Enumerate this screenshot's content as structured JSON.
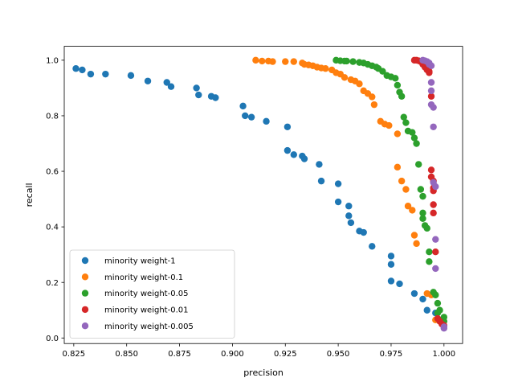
{
  "chart_data": {
    "type": "scatter",
    "title": "",
    "xlabel": "precision",
    "ylabel": "recall",
    "xlim": [
      0.8205,
      1.0088
    ],
    "ylim": [
      -0.02,
      1.05
    ],
    "x_ticks": [
      0.825,
      0.85,
      0.875,
      0.9,
      0.925,
      0.95,
      0.975,
      1.0
    ],
    "x_tick_labels": [
      "0.825",
      "0.850",
      "0.875",
      "0.900",
      "0.925",
      "0.950",
      "0.975",
      "1.000"
    ],
    "y_ticks": [
      0.0,
      0.2,
      0.4,
      0.6,
      0.8,
      1.0
    ],
    "y_tick_labels": [
      "0.0",
      "0.2",
      "0.4",
      "0.6",
      "0.8",
      "1.0"
    ],
    "grid": false,
    "legend_position": "lower-left",
    "series": [
      {
        "name": "minority weight-1",
        "color": "#1f77b4",
        "points": [
          [
            0.826,
            0.97
          ],
          [
            0.829,
            0.965
          ],
          [
            0.833,
            0.95
          ],
          [
            0.84,
            0.95
          ],
          [
            0.852,
            0.945
          ],
          [
            0.86,
            0.925
          ],
          [
            0.869,
            0.92
          ],
          [
            0.871,
            0.905
          ],
          [
            0.883,
            0.9
          ],
          [
            0.884,
            0.875
          ],
          [
            0.89,
            0.87
          ],
          [
            0.892,
            0.865
          ],
          [
            0.905,
            0.835
          ],
          [
            0.906,
            0.8
          ],
          [
            0.909,
            0.795
          ],
          [
            0.916,
            0.78
          ],
          [
            0.926,
            0.76
          ],
          [
            0.926,
            0.675
          ],
          [
            0.929,
            0.66
          ],
          [
            0.933,
            0.655
          ],
          [
            0.934,
            0.645
          ],
          [
            0.941,
            0.625
          ],
          [
            0.942,
            0.565
          ],
          [
            0.95,
            0.555
          ],
          [
            0.95,
            0.49
          ],
          [
            0.955,
            0.475
          ],
          [
            0.955,
            0.44
          ],
          [
            0.956,
            0.415
          ],
          [
            0.96,
            0.385
          ],
          [
            0.962,
            0.38
          ],
          [
            0.966,
            0.33
          ],
          [
            0.975,
            0.295
          ],
          [
            0.975,
            0.265
          ],
          [
            0.975,
            0.205
          ],
          [
            0.979,
            0.195
          ],
          [
            0.986,
            0.16
          ],
          [
            0.99,
            0.14
          ],
          [
            0.992,
            0.1
          ],
          [
            0.996,
            0.09
          ],
          [
            0.998,
            0.065
          ]
        ]
      },
      {
        "name": "minority weight-0.1",
        "color": "#ff7f0e",
        "points": [
          [
            0.911,
            1.0
          ],
          [
            0.914,
            0.997
          ],
          [
            0.917,
            0.997
          ],
          [
            0.919,
            0.995
          ],
          [
            0.925,
            0.995
          ],
          [
            0.929,
            0.995
          ],
          [
            0.933,
            0.99
          ],
          [
            0.934,
            0.985
          ],
          [
            0.936,
            0.983
          ],
          [
            0.938,
            0.98
          ],
          [
            0.94,
            0.975
          ],
          [
            0.942,
            0.972
          ],
          [
            0.944,
            0.97
          ],
          [
            0.947,
            0.965
          ],
          [
            0.949,
            0.955
          ],
          [
            0.951,
            0.95
          ],
          [
            0.953,
            0.938
          ],
          [
            0.956,
            0.93
          ],
          [
            0.958,
            0.925
          ],
          [
            0.96,
            0.915
          ],
          [
            0.962,
            0.89
          ],
          [
            0.964,
            0.88
          ],
          [
            0.966,
            0.868
          ],
          [
            0.967,
            0.84
          ],
          [
            0.97,
            0.78
          ],
          [
            0.972,
            0.77
          ],
          [
            0.974,
            0.765
          ],
          [
            0.978,
            0.735
          ],
          [
            0.978,
            0.615
          ],
          [
            0.98,
            0.565
          ],
          [
            0.982,
            0.535
          ],
          [
            0.983,
            0.475
          ],
          [
            0.985,
            0.46
          ],
          [
            0.986,
            0.37
          ],
          [
            0.987,
            0.34
          ],
          [
            0.992,
            0.16
          ],
          [
            0.994,
            0.155
          ],
          [
            0.996,
            0.065
          ],
          [
            0.998,
            0.06
          ]
        ]
      },
      {
        "name": "minority weight-0.05",
        "color": "#2ca02c",
        "points": [
          [
            0.949,
            1.0
          ],
          [
            0.951,
            0.998
          ],
          [
            0.953,
            0.997
          ],
          [
            0.954,
            0.997
          ],
          [
            0.957,
            0.995
          ],
          [
            0.96,
            0.992
          ],
          [
            0.962,
            0.99
          ],
          [
            0.964,
            0.985
          ],
          [
            0.966,
            0.98
          ],
          [
            0.968,
            0.975
          ],
          [
            0.969,
            0.97
          ],
          [
            0.971,
            0.96
          ],
          [
            0.973,
            0.945
          ],
          [
            0.975,
            0.94
          ],
          [
            0.977,
            0.935
          ],
          [
            0.978,
            0.91
          ],
          [
            0.979,
            0.885
          ],
          [
            0.98,
            0.87
          ],
          [
            0.981,
            0.795
          ],
          [
            0.982,
            0.775
          ],
          [
            0.983,
            0.745
          ],
          [
            0.985,
            0.74
          ],
          [
            0.986,
            0.72
          ],
          [
            0.987,
            0.7
          ],
          [
            0.988,
            0.625
          ],
          [
            0.989,
            0.535
          ],
          [
            0.99,
            0.51
          ],
          [
            0.99,
            0.45
          ],
          [
            0.99,
            0.43
          ],
          [
            0.991,
            0.405
          ],
          [
            0.992,
            0.395
          ],
          [
            0.993,
            0.31
          ],
          [
            0.993,
            0.275
          ],
          [
            0.995,
            0.165
          ],
          [
            0.996,
            0.155
          ],
          [
            0.997,
            0.125
          ],
          [
            0.997,
            0.09
          ],
          [
            0.998,
            0.1
          ],
          [
            1.0,
            0.075
          ],
          [
            1.0,
            0.06
          ]
        ]
      },
      {
        "name": "minority weight-0.01",
        "color": "#d62728",
        "points": [
          [
            0.986,
            1.0
          ],
          [
            0.987,
            1.0
          ],
          [
            0.988,
            0.998
          ],
          [
            0.989,
            0.995
          ],
          [
            0.99,
            0.99
          ],
          [
            0.99,
            0.985
          ],
          [
            0.991,
            0.98
          ],
          [
            0.991,
            0.975
          ],
          [
            0.992,
            0.97
          ],
          [
            0.992,
            0.965
          ],
          [
            0.993,
            0.96
          ],
          [
            0.993,
            0.955
          ],
          [
            0.994,
            0.87
          ],
          [
            0.994,
            0.605
          ],
          [
            0.994,
            0.58
          ],
          [
            0.995,
            0.565
          ],
          [
            0.995,
            0.54
          ],
          [
            0.995,
            0.53
          ],
          [
            0.995,
            0.48
          ],
          [
            0.995,
            0.45
          ],
          [
            0.996,
            0.31
          ],
          [
            0.997,
            0.07
          ],
          [
            0.998,
            0.06
          ],
          [
            0.999,
            0.05
          ],
          [
            1.0,
            0.045
          ]
        ]
      },
      {
        "name": "minority weight-0.005",
        "color": "#9467bd",
        "points": [
          [
            0.99,
            1.0
          ],
          [
            0.991,
            0.998
          ],
          [
            0.992,
            0.995
          ],
          [
            0.993,
            0.99
          ],
          [
            0.993,
            0.985
          ],
          [
            0.994,
            0.98
          ],
          [
            0.994,
            0.92
          ],
          [
            0.994,
            0.89
          ],
          [
            0.994,
            0.84
          ],
          [
            0.995,
            0.83
          ],
          [
            0.995,
            0.76
          ],
          [
            0.995,
            0.56
          ],
          [
            0.996,
            0.545
          ],
          [
            0.996,
            0.355
          ],
          [
            0.996,
            0.25
          ],
          [
            1.0,
            0.04
          ],
          [
            1.0,
            0.035
          ]
        ]
      }
    ]
  }
}
